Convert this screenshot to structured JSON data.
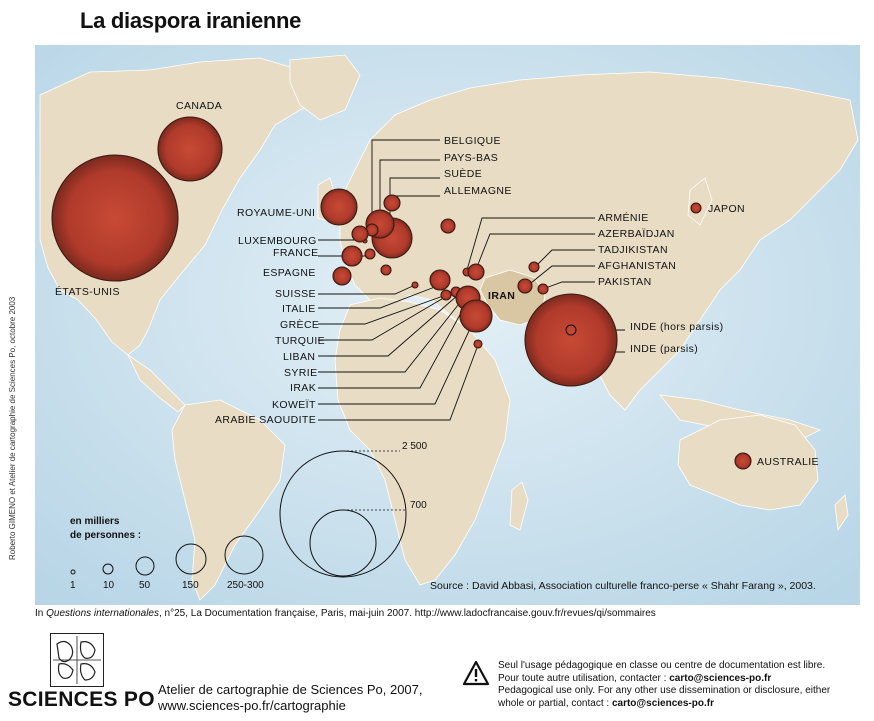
{
  "title": "La diaspora iranienne",
  "credit": "Roberto GIMENO et Atelier de cartographie de Sciences Po, octobre 2003",
  "map": {
    "iran_label": "IRAN",
    "countries": [
      {
        "name": "CANADA"
      },
      {
        "name": "ÉTATS-UNIS"
      },
      {
        "name": "ROYAUME-UNI"
      },
      {
        "name": "BELGIQUE"
      },
      {
        "name": "PAYS-BAS"
      },
      {
        "name": "SUÈDE"
      },
      {
        "name": "ALLEMAGNE"
      },
      {
        "name": "LUXEMBOURG"
      },
      {
        "name": "FRANCE"
      },
      {
        "name": "ESPAGNE"
      },
      {
        "name": "SUISSE"
      },
      {
        "name": "ITALIE"
      },
      {
        "name": "GRÈCE"
      },
      {
        "name": "TURQUIE"
      },
      {
        "name": "LIBAN"
      },
      {
        "name": "SYRIE"
      },
      {
        "name": "IRAK"
      },
      {
        "name": "KOWEÏT"
      },
      {
        "name": "ARABIE SAOUDITE"
      },
      {
        "name": "ARMÉNIE"
      },
      {
        "name": "AZERBAÏDJAN"
      },
      {
        "name": "TADJIKISTAN"
      },
      {
        "name": "AFGHANISTAN"
      },
      {
        "name": "PAKISTAN"
      },
      {
        "name": "INDE (hors parsis)"
      },
      {
        "name": "INDE (parsis)"
      },
      {
        "name": "JAPON"
      },
      {
        "name": "AUSTRALIE"
      }
    ]
  },
  "legend": {
    "title_line1": "en milliers",
    "title_line2": "de personnes :",
    "values": [
      "1",
      "10",
      "50",
      "150",
      "250-300"
    ],
    "ref_values": [
      "2 500",
      "700"
    ]
  },
  "source": "Source : David Abbasi, Association culturelle franco-perse « Shahr Farang », 2003.",
  "citation": {
    "prefix": "In ",
    "journal": "Questions internationales",
    "rest": ", n°25, La Documentation française, Paris, mai-juin 2007. http://www.ladocfrancaise.gouv.fr/revues/qi/sommaires"
  },
  "footer": {
    "logo": "SCIENCES PO",
    "atelier_line1": "Atelier de cartographie de Sciences Po, 2007,",
    "atelier_line2": "www.sciences-po.fr/cartographie",
    "usage_line1": "Seul l'usage pédagogique en classe ou centre de documentation est libre.",
    "usage_line2_prefix": "Pour toute autre utilisation, contacter : ",
    "usage_email": "carto@sciences-po.fr",
    "usage_line3": "Pedagogical use only. For any other use dissemination or disclosure, either",
    "usage_line4_prefix": "whole or partial, contact : ",
    "usage_email2": "carto@sciences-po.fr"
  },
  "colors": {
    "ocean": "#cfe3ef",
    "land": "#e9dcc4",
    "iran": "#d9c7a4",
    "bubble": "#b8402f"
  }
}
